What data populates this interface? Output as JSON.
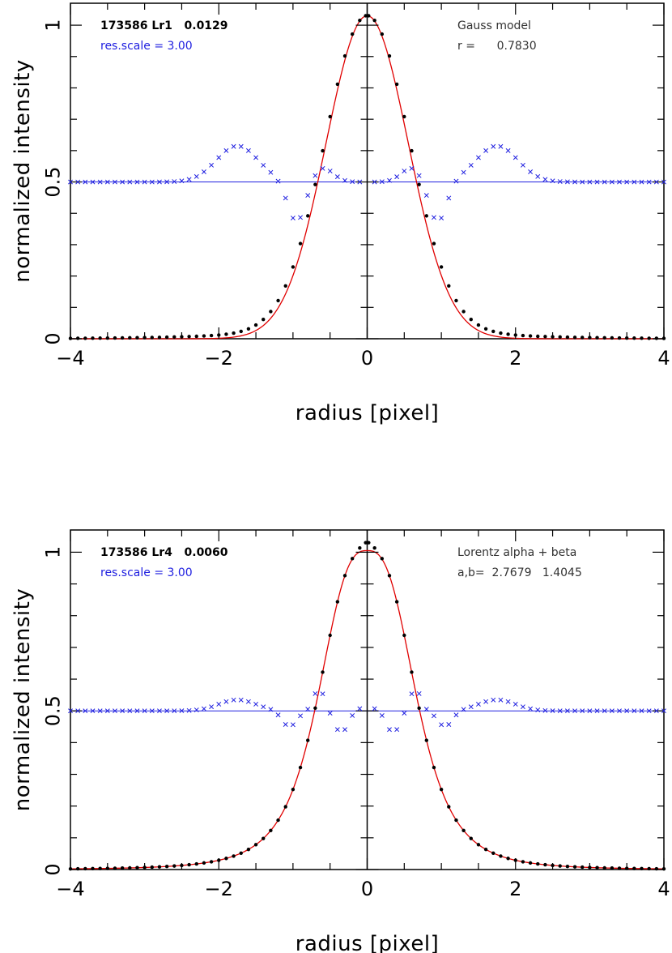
{
  "colors": {
    "data": "#000000",
    "model": "#e00000",
    "residual": "#2020e0",
    "axes": "#000000"
  },
  "chart_data": [
    {
      "type": "scatter",
      "xlabel": "radius [pixel]",
      "ylabel": "normalized intensity",
      "xlim": [
        -4,
        4
      ],
      "ylim": [
        0,
        1.07
      ],
      "xticks": [
        -4,
        -2,
        0,
        2,
        4
      ],
      "xtick_labels": [
        "−4",
        "−2",
        "0",
        "2",
        "4"
      ],
      "yticks": [
        0,
        0.5,
        1
      ],
      "ytick_labels": [
        "0",
        "0.5",
        "1"
      ],
      "annotations": {
        "id_label": "173586 Lr1   0.0129",
        "scale_label": "res.scale = 3.00",
        "model_label": "Gauss model",
        "param_label": "r =      0.7830"
      },
      "residual_baseline": 0.5,
      "model": {
        "kind": "gauss",
        "peak": 1.03,
        "r": 0.783
      },
      "points": {
        "kind": "gauss-wing",
        "peak": 1.03,
        "r": 0.783,
        "wing_amp": 0.085,
        "wing_scale": 0.95
      },
      "residuals": {
        "peaks": [
          [
            0.6,
            0.045,
            0.2
          ],
          [
            1.75,
            0.115,
            0.4
          ],
          [
            0.95,
            -0.13,
            0.17
          ]
        ]
      }
    },
    {
      "type": "scatter",
      "xlabel": "radius [pixel]",
      "ylabel": "normalized intensity",
      "xlim": [
        -4,
        4
      ],
      "ylim": [
        0,
        1.07
      ],
      "xticks": [
        -4,
        -2,
        0,
        2,
        4
      ],
      "xtick_labels": [
        "−4",
        "−2",
        "0",
        "2",
        "4"
      ],
      "yticks": [
        0,
        0.5,
        1
      ],
      "ytick_labels": [
        "0",
        "0.5",
        "1"
      ],
      "annotations": {
        "id_label": "173586 Lr4   0.0060",
        "scale_label": "res.scale = 3.00",
        "model_label": "Lorentz alpha + beta",
        "param_label": "a,b=  2.7679   1.4045"
      },
      "residual_baseline": 0.5,
      "model": {
        "kind": "lorentz",
        "peak": 1.005,
        "alpha": 2.7679,
        "beta": 1.4045,
        "width": 0.83
      },
      "points": {
        "kind": "lorentz-peak",
        "peak": 1.005,
        "alpha": 2.7679,
        "beta": 1.4045,
        "width": 0.83,
        "core_amp": 0.025,
        "core_w": 0.12
      },
      "residuals": {
        "peaks": [
          [
            0.0,
            0.06,
            0.07
          ],
          [
            0.35,
            -0.07,
            0.12
          ],
          [
            0.65,
            0.07,
            0.1
          ],
          [
            1.05,
            -0.05,
            0.14
          ],
          [
            1.75,
            0.035,
            0.35
          ]
        ]
      }
    }
  ]
}
